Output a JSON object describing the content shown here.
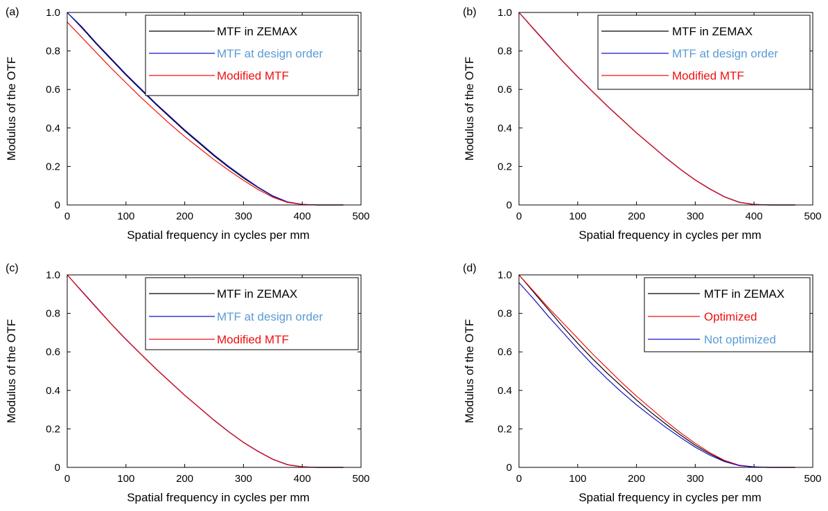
{
  "colors": {
    "black": "#000000",
    "blue": "#1010cc",
    "red": "#ee1010",
    "lightblue": "#5b9bd5"
  },
  "chart_data": [
    {
      "panel_label": "(a)",
      "type": "line",
      "xlabel": "Spatial frequency in cycles per mm",
      "ylabel": "Modulus of the OTF",
      "xlim": [
        0,
        500
      ],
      "ylim": [
        0,
        1.0
      ],
      "xticks": [
        0,
        100,
        200,
        300,
        400,
        500
      ],
      "yticks": [
        0,
        0.2,
        0.4,
        0.6,
        0.8,
        1.0
      ],
      "xtick_labels": [
        "0",
        "100",
        "200",
        "300",
        "400",
        "500"
      ],
      "ytick_labels": [
        "0",
        "0.2",
        "0.4",
        "0.6",
        "0.8",
        "1.0"
      ],
      "legend_position": "top-right",
      "series": [
        {
          "name": "MTF in ZEMAX",
          "color": "#000000",
          "label_color": "#000000",
          "x": [
            0,
            25,
            50,
            75,
            100,
            125,
            150,
            175,
            200,
            225,
            250,
            275,
            300,
            325,
            350,
            375,
            400,
            425,
            450,
            470
          ],
          "y": [
            1.0,
            0.92,
            0.835,
            0.755,
            0.675,
            0.6,
            0.525,
            0.455,
            0.385,
            0.32,
            0.255,
            0.195,
            0.14,
            0.09,
            0.045,
            0.015,
            0.003,
            0.0,
            0.0,
            0.0
          ]
        },
        {
          "name": "MTF at design order",
          "color": "#1010cc",
          "label_color": "#5b9bd5",
          "x": [
            0,
            25,
            50,
            75,
            100,
            125,
            150,
            175,
            200,
            225,
            250,
            275,
            300,
            325,
            350,
            375,
            400,
            425,
            450,
            470
          ],
          "y": [
            1.0,
            0.925,
            0.84,
            0.76,
            0.68,
            0.605,
            0.53,
            0.46,
            0.39,
            0.325,
            0.26,
            0.2,
            0.145,
            0.092,
            0.047,
            0.016,
            0.003,
            0.0,
            0.0,
            0.0
          ]
        },
        {
          "name": "Modified MTF",
          "color": "#ee1010",
          "label_color": "#ee1010",
          "x": [
            0,
            25,
            50,
            75,
            100,
            125,
            150,
            175,
            200,
            225,
            250,
            275,
            300,
            325,
            350,
            375,
            400,
            425,
            450,
            470
          ],
          "y": [
            0.95,
            0.87,
            0.79,
            0.71,
            0.635,
            0.56,
            0.49,
            0.42,
            0.355,
            0.295,
            0.235,
            0.18,
            0.128,
            0.08,
            0.04,
            0.013,
            0.002,
            0.0,
            0.0,
            0.0
          ]
        }
      ]
    },
    {
      "panel_label": "(b)",
      "type": "line",
      "xlabel": "Spatial frequency in cycles per mm",
      "ylabel": "Modulus of the OTF",
      "xlim": [
        0,
        500
      ],
      "ylim": [
        0,
        1.0
      ],
      "xticks": [
        0,
        100,
        200,
        300,
        400,
        500
      ],
      "yticks": [
        0,
        0.2,
        0.4,
        0.6,
        0.8,
        1.0
      ],
      "xtick_labels": [
        "0",
        "100",
        "200",
        "300",
        "400",
        "500"
      ],
      "ytick_labels": [
        "0",
        "0.2",
        "0.4",
        "0.6",
        "0.8",
        "1.0"
      ],
      "legend_position": "top-right",
      "series": [
        {
          "name": "MTF in ZEMAX",
          "color": "#000000",
          "label_color": "#000000",
          "x": [
            0,
            25,
            50,
            75,
            100,
            125,
            150,
            175,
            200,
            225,
            250,
            275,
            300,
            325,
            350,
            375,
            400,
            425,
            450,
            470
          ],
          "y": [
            1.0,
            0.915,
            0.83,
            0.745,
            0.665,
            0.59,
            0.515,
            0.445,
            0.375,
            0.31,
            0.245,
            0.185,
            0.13,
            0.083,
            0.042,
            0.014,
            0.003,
            0.0,
            0.0,
            0.0
          ]
        },
        {
          "name": "MTF at design order",
          "color": "#1010cc",
          "label_color": "#5b9bd5",
          "x": [
            0,
            25,
            50,
            75,
            100,
            125,
            150,
            175,
            200,
            225,
            250,
            275,
            300,
            325,
            350,
            375,
            400,
            425,
            450,
            470
          ],
          "y": [
            1.0,
            0.915,
            0.83,
            0.745,
            0.665,
            0.59,
            0.515,
            0.445,
            0.375,
            0.31,
            0.245,
            0.185,
            0.13,
            0.083,
            0.042,
            0.014,
            0.003,
            0.0,
            0.0,
            0.0
          ]
        },
        {
          "name": "Modified MTF",
          "color": "#ee1010",
          "label_color": "#ee1010",
          "x": [
            0,
            25,
            50,
            75,
            100,
            125,
            150,
            175,
            200,
            225,
            250,
            275,
            300,
            325,
            350,
            375,
            400,
            425,
            450,
            470
          ],
          "y": [
            1.0,
            0.913,
            0.828,
            0.744,
            0.664,
            0.589,
            0.514,
            0.444,
            0.374,
            0.309,
            0.244,
            0.184,
            0.129,
            0.082,
            0.041,
            0.013,
            0.002,
            0.0,
            0.0,
            0.0
          ]
        }
      ]
    },
    {
      "panel_label": "(c)",
      "type": "line",
      "xlabel": "Spatial frequency in cycles per mm",
      "ylabel": "Modulus of the OTF",
      "xlim": [
        0,
        500
      ],
      "ylim": [
        0,
        1.0
      ],
      "xticks": [
        0,
        100,
        200,
        300,
        400,
        500
      ],
      "yticks": [
        0,
        0.2,
        0.4,
        0.6,
        0.8,
        1.0
      ],
      "xtick_labels": [
        "0",
        "100",
        "200",
        "300",
        "400",
        "500"
      ],
      "ytick_labels": [
        "0",
        "0.2",
        "0.4",
        "0.6",
        "0.8",
        "1.0"
      ],
      "legend_position": "top-right",
      "series": [
        {
          "name": "MTF in ZEMAX",
          "color": "#000000",
          "label_color": "#000000",
          "x": [
            0,
            25,
            50,
            75,
            100,
            125,
            150,
            175,
            200,
            225,
            250,
            275,
            300,
            325,
            350,
            375,
            400,
            425,
            450,
            470
          ],
          "y": [
            1.0,
            0.915,
            0.83,
            0.745,
            0.665,
            0.59,
            0.515,
            0.445,
            0.375,
            0.31,
            0.245,
            0.185,
            0.13,
            0.083,
            0.042,
            0.014,
            0.003,
            0.0,
            0.0,
            0.0
          ]
        },
        {
          "name": "MTF at design order",
          "color": "#1010cc",
          "label_color": "#5b9bd5",
          "x": [
            0,
            25,
            50,
            75,
            100,
            125,
            150,
            175,
            200,
            225,
            250,
            275,
            300,
            325,
            350,
            375,
            400,
            425,
            450,
            470
          ],
          "y": [
            1.0,
            0.915,
            0.83,
            0.745,
            0.665,
            0.59,
            0.515,
            0.445,
            0.375,
            0.31,
            0.245,
            0.185,
            0.13,
            0.083,
            0.042,
            0.014,
            0.003,
            0.0,
            0.0,
            0.0
          ]
        },
        {
          "name": "Modified MTF",
          "color": "#ee1010",
          "label_color": "#ee1010",
          "x": [
            0,
            25,
            50,
            75,
            100,
            125,
            150,
            175,
            200,
            225,
            250,
            275,
            300,
            325,
            350,
            375,
            400,
            425,
            450,
            470
          ],
          "y": [
            1.0,
            0.913,
            0.828,
            0.744,
            0.664,
            0.589,
            0.514,
            0.444,
            0.374,
            0.309,
            0.244,
            0.184,
            0.129,
            0.082,
            0.041,
            0.013,
            0.002,
            0.0,
            0.0,
            0.0
          ]
        }
      ]
    },
    {
      "panel_label": "(d)",
      "type": "line",
      "xlabel": "Spatial frequency in cycles per mm",
      "ylabel": "Modulus of the OTF",
      "xlim": [
        0,
        500
      ],
      "ylim": [
        0,
        1.0
      ],
      "xticks": [
        0,
        100,
        200,
        300,
        400,
        500
      ],
      "yticks": [
        0,
        0.2,
        0.4,
        0.6,
        0.8,
        1.0
      ],
      "xtick_labels": [
        "0",
        "100",
        "200",
        "300",
        "400",
        "500"
      ],
      "ytick_labels": [
        "0",
        "0.2",
        "0.4",
        "0.6",
        "0.8",
        "1.0"
      ],
      "legend_position": "top-right",
      "series": [
        {
          "name": "MTF in ZEMAX",
          "color": "#000000",
          "label_color": "#000000",
          "x": [
            0,
            25,
            50,
            75,
            100,
            125,
            150,
            175,
            200,
            225,
            250,
            275,
            300,
            325,
            350,
            375,
            400,
            425,
            450,
            470
          ],
          "y": [
            1.0,
            0.91,
            0.82,
            0.73,
            0.645,
            0.565,
            0.49,
            0.42,
            0.35,
            0.285,
            0.225,
            0.168,
            0.115,
            0.07,
            0.033,
            0.01,
            0.002,
            0.0,
            0.0,
            0.0
          ]
        },
        {
          "name": "Optimized",
          "color": "#ee1010",
          "label_color": "#ee1010",
          "x": [
            0,
            25,
            50,
            75,
            100,
            125,
            150,
            175,
            200,
            225,
            250,
            275,
            300,
            325,
            350,
            375,
            400,
            425,
            450,
            470
          ],
          "y": [
            1.0,
            0.915,
            0.83,
            0.75,
            0.67,
            0.59,
            0.515,
            0.44,
            0.37,
            0.305,
            0.24,
            0.18,
            0.125,
            0.076,
            0.036,
            0.011,
            0.002,
            0.0,
            0.0,
            0.0
          ]
        },
        {
          "name": "Not optimized",
          "color": "#1010cc",
          "label_color": "#5b9bd5",
          "x": [
            0,
            25,
            50,
            75,
            100,
            125,
            150,
            175,
            200,
            225,
            250,
            275,
            300,
            325,
            350,
            375,
            400,
            425,
            450,
            470
          ],
          "y": [
            0.96,
            0.875,
            0.785,
            0.7,
            0.615,
            0.535,
            0.46,
            0.39,
            0.325,
            0.265,
            0.208,
            0.155,
            0.105,
            0.063,
            0.03,
            0.009,
            0.002,
            0.0,
            0.0,
            0.0
          ]
        }
      ]
    }
  ]
}
